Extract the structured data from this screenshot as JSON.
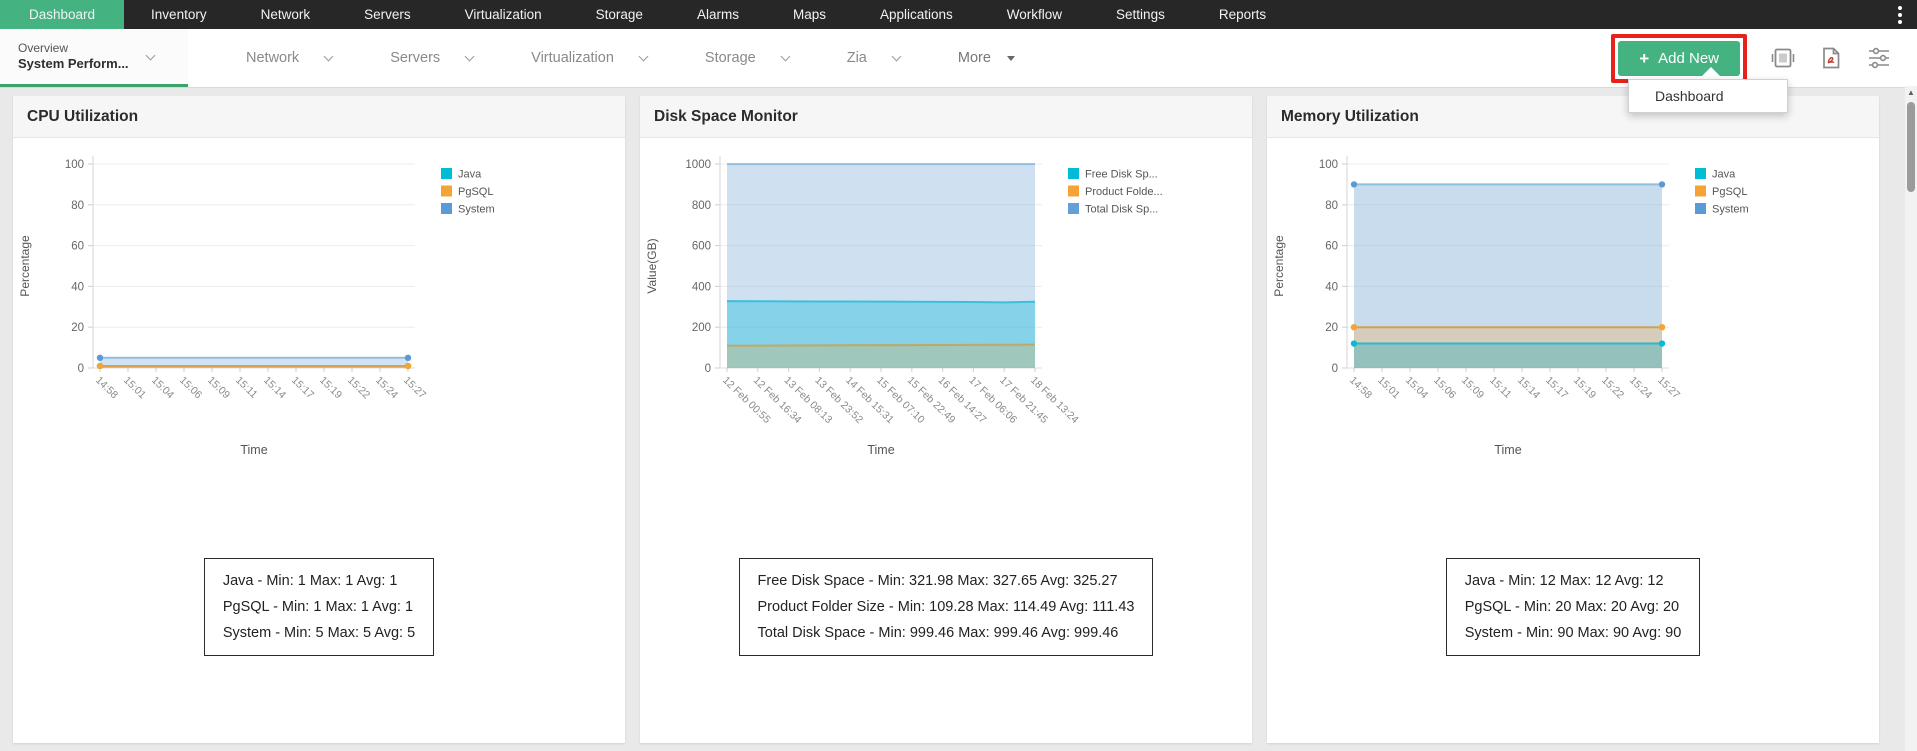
{
  "top_nav": {
    "items": [
      {
        "label": "Dashboard",
        "active": true
      },
      {
        "label": "Inventory"
      },
      {
        "label": "Network"
      },
      {
        "label": "Servers"
      },
      {
        "label": "Virtualization"
      },
      {
        "label": "Storage"
      },
      {
        "label": "Alarms"
      },
      {
        "label": "Maps"
      },
      {
        "label": "Applications"
      },
      {
        "label": "Workflow"
      },
      {
        "label": "Settings"
      },
      {
        "label": "Reports"
      }
    ]
  },
  "sub_nav": {
    "primary_tab": {
      "line1": "Overview",
      "line2": "System Perform..."
    },
    "items": [
      "Network",
      "Servers",
      "Virtualization",
      "Storage",
      "Zia"
    ],
    "more_label": "More",
    "add_new": {
      "plus": "+",
      "label": "Add New"
    },
    "dropdown_items": [
      "Dashboard"
    ]
  },
  "colors": {
    "nav_bg": "#272727",
    "accent_green": "#44b281",
    "highlight_red": "#e8211d",
    "legend_cyan": "#00bcd4",
    "legend_orange": "#f6a335",
    "legend_blue": "#64a0d8"
  },
  "chart_data": [
    {
      "type": "area",
      "title": "CPU Utilization",
      "xlabel": "Time",
      "ylabel": "Percentage",
      "ylim": [
        0,
        100
      ],
      "yticks": [
        0,
        20,
        40,
        60,
        80,
        100
      ],
      "grid": true,
      "legend_position": "right",
      "end_markers": true,
      "categories": [
        "14:58",
        "15:01",
        "15:04",
        "15:06",
        "15:09",
        "15:11",
        "15:14",
        "15:17",
        "15:19",
        "15:22",
        "15:24",
        "15:27"
      ],
      "series": [
        {
          "name": "Java",
          "legend": "Java",
          "color": "#00bcd4",
          "line": "rgba(0,180,205,0.55)",
          "fill": "rgba(0,188,212,0.25)",
          "values": [
            1,
            1,
            1,
            1,
            1,
            1,
            1,
            1,
            1,
            1,
            1,
            1
          ]
        },
        {
          "name": "PgSQL",
          "legend": "PgSQL",
          "color": "#f6a335",
          "line": "rgba(225,160,70,0.9)",
          "fill": "rgba(244,166,53,0.35)",
          "values": [
            1,
            1,
            1,
            1,
            1,
            1,
            1,
            1,
            1,
            1,
            1,
            1
          ]
        },
        {
          "name": "System",
          "legend": "System",
          "color": "#5b9bd5",
          "line": "#8fbede",
          "fill": "rgba(137,180,220,0.38)",
          "values": [
            5,
            5,
            5,
            5,
            5,
            5,
            5,
            5,
            5,
            5,
            5,
            5
          ]
        }
      ],
      "stats": [
        "Java - Min: 1 Max: 1 Avg: 1",
        "PgSQL - Min: 1 Max: 1 Avg: 1",
        "System - Min: 5 Max: 5 Avg: 5"
      ]
    },
    {
      "type": "area",
      "title": "Disk Space Monitor",
      "xlabel": "Time",
      "ylabel": "Value(GB)",
      "ylim": [
        0,
        1000
      ],
      "yticks": [
        0,
        200,
        400,
        600,
        800,
        1000
      ],
      "grid": true,
      "legend_position": "right",
      "end_markers": false,
      "categories": [
        "12 Feb 00:55",
        "12 Feb 16:34",
        "13 Feb 08:13",
        "13 Feb 23:52",
        "14 Feb 15:31",
        "15 Feb 07:10",
        "15 Feb 22:49",
        "16 Feb 14:27",
        "17 Feb 06:06",
        "17 Feb 21:45",
        "18 Feb 13:24"
      ],
      "series": [
        {
          "name": "Free Disk Space",
          "legend": "Free Disk Sp...",
          "color": "#00bcd4",
          "line": "#3cc0da",
          "fill": "rgba(60,195,225,0.5)",
          "values": [
            327.65,
            327.1,
            326.6,
            326.2,
            325.8,
            325.3,
            324.9,
            324.4,
            323.8,
            321.98,
            324.5
          ]
        },
        {
          "name": "Product Folder Size",
          "legend": "Product Folde...",
          "color": "#f6a335",
          "line": "rgba(195,165,95,0.95)",
          "fill": "rgba(244,166,53,0.25)",
          "values": [
            109.28,
            109.8,
            110.3,
            110.9,
            111.4,
            111.9,
            112.4,
            112.9,
            113.4,
            114.0,
            114.49
          ]
        },
        {
          "name": "Total Disk Space",
          "legend": "Total Disk Sp...",
          "color": "#64a0d8",
          "line": "#8fbede",
          "fill": "rgba(148,186,222,0.45)",
          "values": [
            999.46,
            999.46,
            999.46,
            999.46,
            999.46,
            999.46,
            999.46,
            999.46,
            999.46,
            999.46,
            999.46
          ]
        }
      ],
      "stats": [
        "Free Disk Space - Min: 321.98 Max: 327.65 Avg: 325.27",
        "Product Folder Size - Min: 109.28 Max: 114.49 Avg: 111.43",
        "Total Disk Space - Min: 999.46 Max: 999.46 Avg: 999.46"
      ]
    },
    {
      "type": "area",
      "title": "Memory Utilization",
      "xlabel": "Time",
      "ylabel": "Percentage",
      "ylim": [
        0,
        100
      ],
      "yticks": [
        0,
        20,
        40,
        60,
        80,
        100
      ],
      "grid": true,
      "legend_position": "right",
      "end_markers": true,
      "categories": [
        "14:58",
        "15:01",
        "15:04",
        "15:06",
        "15:09",
        "15:11",
        "15:14",
        "15:17",
        "15:19",
        "15:22",
        "15:24",
        "15:27"
      ],
      "series": [
        {
          "name": "Java",
          "legend": "Java",
          "color": "#00bcd4",
          "line": "#2bb8cf",
          "fill": "rgba(0,170,190,0.30)",
          "values": [
            12,
            12,
            12,
            12,
            12,
            12,
            12,
            12,
            12,
            12,
            12,
            12
          ]
        },
        {
          "name": "PgSQL",
          "legend": "PgSQL",
          "color": "#f6a335",
          "line": "rgba(205,160,80,0.95)",
          "fill": "rgba(244,166,53,0.28)",
          "values": [
            20,
            20,
            20,
            20,
            20,
            20,
            20,
            20,
            20,
            20,
            20,
            20
          ]
        },
        {
          "name": "System",
          "legend": "System",
          "color": "#5b9bd5",
          "line": "#8fbede",
          "fill": "rgba(148,186,222,0.5)",
          "values": [
            90,
            90,
            90,
            90,
            90,
            90,
            90,
            90,
            90,
            90,
            90,
            90
          ]
        }
      ],
      "stats": [
        "Java - Min: 12 Max: 12 Avg: 12",
        "PgSQL - Min: 20 Max: 20 Avg: 20",
        "System - Min: 90 Max: 90 Avg: 90"
      ]
    }
  ]
}
